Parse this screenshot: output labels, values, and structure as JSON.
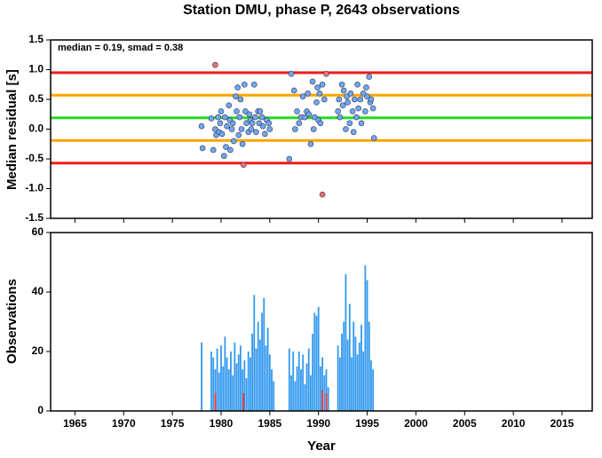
{
  "chart_data": [
    {
      "type": "scatter",
      "title": "Station DMU, phase P, 2643 observations",
      "annotation": "median = 0.19, smad = 0.38",
      "ylabel": "Median residual [s]",
      "xlim": [
        1962.5,
        2018.1
      ],
      "xticks": [
        1965,
        1970,
        1975,
        1980,
        1985,
        1990,
        1995,
        2000,
        2005,
        2010,
        2015
      ],
      "ylim": [
        -1.5,
        1.5
      ],
      "yticks": [
        1.5,
        {
          "value": 1,
          "label": "1.0"
        },
        0.5,
        {
          "value": 0,
          "label": "0.0"
        },
        -0.5,
        {
          "value": -1,
          "label": "-1.0"
        },
        -1.5
      ],
      "hlines": [
        {
          "value": 0.95,
          "color": "#ee1c1c"
        },
        {
          "value": 0.57,
          "color": "#ffa500"
        },
        {
          "value": 0.19,
          "color": "#22dd22"
        },
        {
          "value": -0.19,
          "color": "#ffa500"
        },
        {
          "value": -0.57,
          "color": "#ee1c1c"
        }
      ],
      "series": [
        {
          "color": "#6fa8f0",
          "x": [
            1978.0,
            1978.1,
            1979.0,
            1979.2,
            1979.4,
            1979.5,
            1979.7,
            1979.8,
            1979.9,
            1980.0,
            1980.1,
            1980.3,
            1980.4,
            1980.5,
            1980.6,
            1980.8,
            1980.9,
            1980.95,
            1981.1,
            1981.2,
            1981.3,
            1981.5,
            1981.6,
            1981.7,
            1981.8,
            1981.9,
            1982.0,
            1982.1,
            1982.2,
            1982.4,
            1982.5,
            1982.6,
            1982.8,
            1982.9,
            1983.0,
            1983.1,
            1983.2,
            1983.4,
            1983.5,
            1983.6,
            1983.8,
            1983.9,
            1984.0,
            1984.2,
            1984.3,
            1984.5,
            1984.7,
            1984.9,
            1985.0,
            1987.0,
            1987.2,
            1987.5,
            1987.6,
            1987.8,
            1988.0,
            1988.2,
            1988.4,
            1988.6,
            1988.8,
            1988.9,
            1989.0,
            1989.2,
            1989.4,
            1989.5,
            1989.6,
            1989.8,
            1989.9,
            1990.0,
            1990.1,
            1990.2,
            1990.4,
            1990.6,
            1992.0,
            1992.1,
            1992.2,
            1992.4,
            1992.5,
            1992.6,
            1992.8,
            1992.9,
            1993.0,
            1993.2,
            1993.3,
            1993.5,
            1993.6,
            1993.7,
            1993.9,
            1994.0,
            1994.1,
            1994.3,
            1994.4,
            1994.6,
            1994.8,
            1994.9,
            1995.0,
            1995.2,
            1995.3,
            1995.4,
            1995.6,
            1995.7
          ],
          "values": [
            0.05,
            -0.32,
            0.18,
            -0.35,
            0.0,
            -0.1,
            0.2,
            -0.05,
            0.1,
            0.3,
            -0.08,
            -0.45,
            0.2,
            -0.3,
            0.05,
            0.4,
            0.15,
            -0.35,
            0.0,
            0.1,
            -0.2,
            0.55,
            0.3,
            0.7,
            -0.1,
            0.2,
            0.5,
            0.0,
            -0.25,
            0.75,
            0.3,
            0.1,
            -0.05,
            0.25,
            0.15,
            0.0,
            0.1,
            0.75,
            0.2,
            -0.05,
            0.3,
            0.1,
            0.3,
            0.2,
            0.05,
            -0.08,
            0.15,
            0.1,
            0.0,
            -0.5,
            0.93,
            0.65,
            0.0,
            0.3,
            0.1,
            0.2,
            0.55,
            0.2,
            0.3,
            0.6,
            0.25,
            -0.25,
            0.8,
            0.0,
            0.2,
            0.45,
            0.7,
            0.15,
            0.6,
            0.1,
            0.75,
            0.5,
            0.3,
            0.5,
            0.2,
            0.75,
            0.4,
            0.65,
            0.0,
            0.55,
            0.45,
            0.1,
            0.6,
            0.3,
            -0.05,
            0.5,
            0.2,
            0.75,
            0.35,
            0.5,
            0.1,
            0.6,
            0.3,
            0.7,
            0.55,
            0.88,
            0.45,
            0.5,
            0.35,
            -0.15
          ]
        },
        {
          "color": "#f07070",
          "x": [
            1979.4,
            1982.3,
            1990.4,
            1990.8
          ],
          "values": [
            1.08,
            -0.6,
            -1.1,
            0.93
          ]
        }
      ]
    },
    {
      "type": "bar",
      "xlabel": "Year",
      "ylabel": "Observations",
      "xlim": [
        1962.5,
        2018.1
      ],
      "xticks": [
        1965,
        1970,
        1975,
        1980,
        1985,
        1990,
        1995,
        2000,
        2005,
        2010,
        2015
      ],
      "ylim": [
        0,
        60
      ],
      "yticks": [
        0,
        20,
        40,
        60
      ],
      "series": [
        {
          "color": "#3399ee",
          "x": [
            1978.0,
            1978.2,
            1978.4,
            1978.6,
            1978.8,
            1979.0,
            1979.2,
            1979.4,
            1979.6,
            1979.8,
            1980.0,
            1980.2,
            1980.4,
            1980.6,
            1980.8,
            1981.0,
            1981.2,
            1981.4,
            1981.6,
            1981.8,
            1982.0,
            1982.2,
            1982.4,
            1982.6,
            1982.8,
            1983.0,
            1983.2,
            1983.4,
            1983.6,
            1983.8,
            1984.0,
            1984.2,
            1984.4,
            1984.6,
            1984.8,
            1985.0,
            1985.2,
            1985.4,
            1985.6,
            1985.8,
            1986.0,
            1986.2,
            1986.4,
            1986.6,
            1986.8,
            1987.0,
            1987.2,
            1987.4,
            1987.6,
            1987.8,
            1988.0,
            1988.2,
            1988.4,
            1988.6,
            1988.8,
            1989.0,
            1989.2,
            1989.4,
            1989.6,
            1989.8,
            1990.0,
            1990.2,
            1990.4,
            1990.6,
            1990.8,
            1991.0,
            1991.2,
            1991.4,
            1991.6,
            1991.8,
            1992.0,
            1992.2,
            1992.4,
            1992.6,
            1992.8,
            1993.0,
            1993.2,
            1993.4,
            1993.6,
            1993.8,
            1994.0,
            1994.2,
            1994.4,
            1994.6,
            1994.8,
            1995.0,
            1995.2,
            1995.4,
            1995.6,
            1995.8
          ],
          "values": [
            23,
            0,
            0,
            0,
            0,
            20,
            18,
            14,
            21,
            13,
            22,
            15,
            25,
            18,
            14,
            20,
            12,
            23,
            16,
            19,
            22,
            14,
            17,
            11,
            20,
            18,
            26,
            39,
            21,
            30,
            24,
            33,
            38,
            22,
            28,
            19,
            14,
            10,
            0,
            0,
            0,
            0,
            0,
            0,
            0,
            21,
            12,
            20,
            10,
            15,
            20,
            14,
            19,
            9,
            16,
            21,
            12,
            26,
            33,
            32,
            35,
            15,
            18,
            12,
            14,
            8,
            0,
            0,
            0,
            0,
            22,
            18,
            26,
            30,
            46,
            24,
            36,
            18,
            30,
            25,
            19,
            23,
            29,
            20,
            49,
            44,
            30,
            17,
            14,
            0
          ]
        },
        {
          "color": "#ee3333",
          "x": [
            1979.4,
            1982.3,
            1990.4,
            1990.8
          ],
          "values": [
            6,
            6,
            7,
            6
          ]
        }
      ]
    }
  ]
}
